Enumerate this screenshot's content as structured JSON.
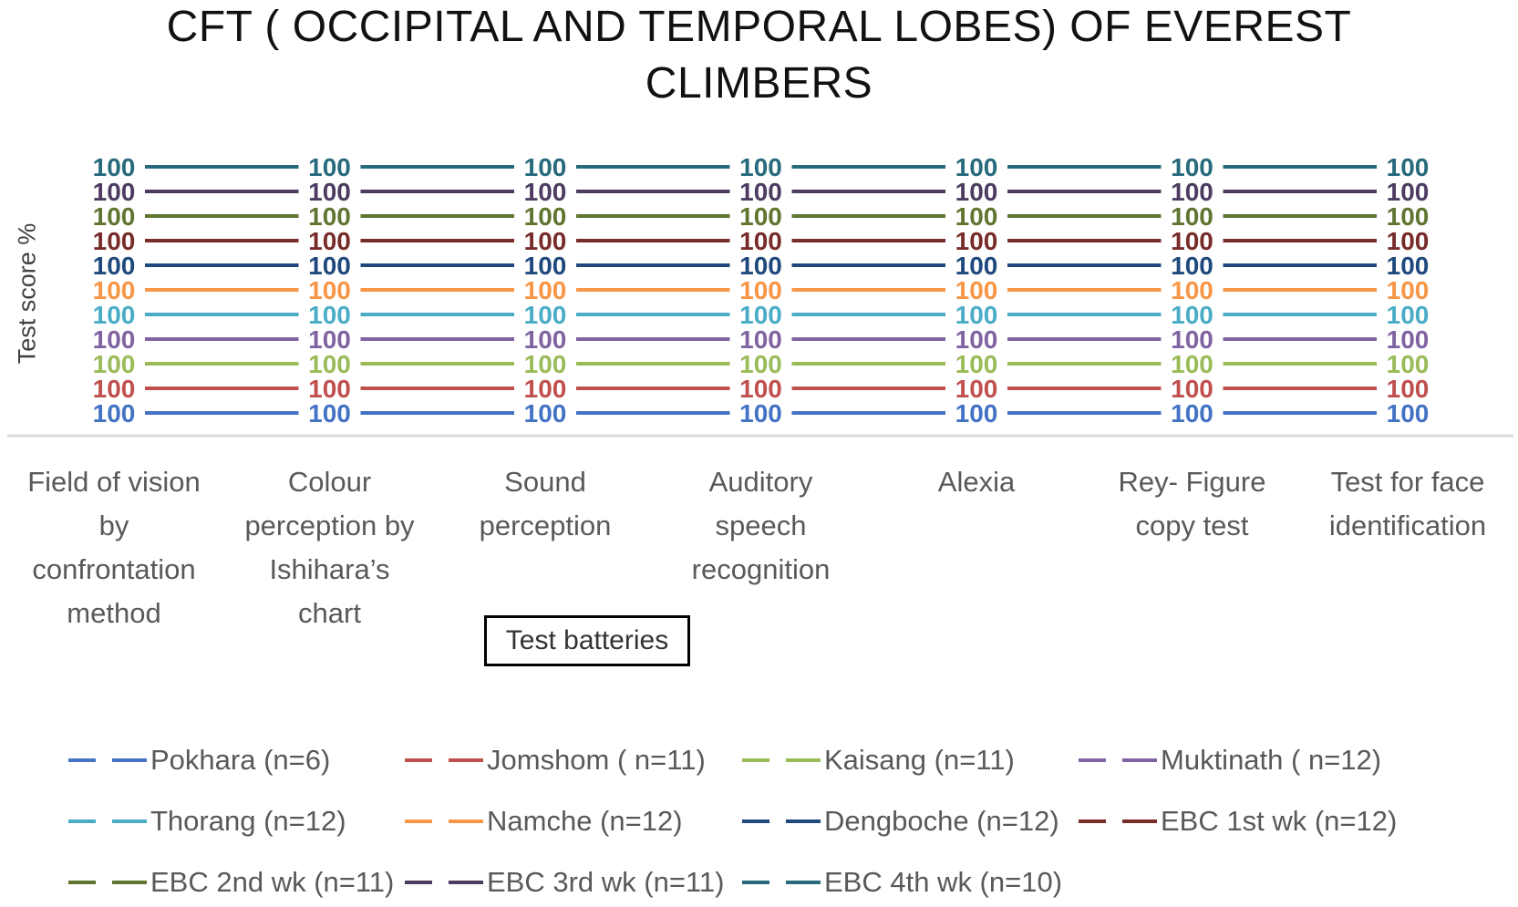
{
  "title_line1": "CFT ( OCCIPITAL AND TEMPORAL LOBES) OF EVEREST",
  "title_line2": "CLIMBERS",
  "ylabel": "Test score %",
  "xaxis_title": "Test batteries",
  "chart_data": {
    "type": "line",
    "title": "CFT ( OCCIPITAL AND TEMPORAL LOBES) OF EVEREST CLIMBERS",
    "xlabel": "Test batteries",
    "ylabel": "Test score %",
    "categories": [
      [
        "Field of vision",
        "by",
        "confrontation",
        "method"
      ],
      [
        "Colour",
        "perception by",
        "Ishihara’s",
        "chart"
      ],
      [
        "Sound",
        "perception"
      ],
      [
        "Auditory",
        "speech",
        "recognition"
      ],
      [
        "Alexia"
      ],
      [
        "Rey- Figure",
        "copy test"
      ],
      [
        "Test for face",
        "identification"
      ]
    ],
    "series": [
      {
        "name": "Pokhara (n=6)",
        "color": "#4472C4",
        "values": [
          100,
          100,
          100,
          100,
          100,
          100,
          100
        ]
      },
      {
        "name": "Jomshom ( n=11)",
        "color": "#C0504D",
        "values": [
          100,
          100,
          100,
          100,
          100,
          100,
          100
        ]
      },
      {
        "name": "Kaisang (n=11)",
        "color": "#9BBB59",
        "values": [
          100,
          100,
          100,
          100,
          100,
          100,
          100
        ]
      },
      {
        "name": "Muktinath ( n=12)",
        "color": "#8064A2",
        "values": [
          100,
          100,
          100,
          100,
          100,
          100,
          100
        ]
      },
      {
        "name": "Thorang (n=12)",
        "color": "#4BACC6",
        "values": [
          100,
          100,
          100,
          100,
          100,
          100,
          100
        ]
      },
      {
        "name": "Namche (n=12)",
        "color": "#F79646",
        "values": [
          100,
          100,
          100,
          100,
          100,
          100,
          100
        ]
      },
      {
        "name": "Dengboche (n=12)",
        "color": "#1F497D",
        "values": [
          100,
          100,
          100,
          100,
          100,
          100,
          100
        ]
      },
      {
        "name": "EBC 1st wk (n=12)",
        "color": "#772C2A",
        "values": [
          100,
          100,
          100,
          100,
          100,
          100,
          100
        ]
      },
      {
        "name": "EBC 2nd wk (n=11)",
        "color": "#5F7530",
        "values": [
          100,
          100,
          100,
          100,
          100,
          100,
          100
        ]
      },
      {
        "name": "EBC 3rd wk (n=11)",
        "color": "#4D3B62",
        "values": [
          100,
          100,
          100,
          100,
          100,
          100,
          100
        ]
      },
      {
        "name": "EBC 4th wk (n=10)",
        "color": "#276A7C",
        "values": [
          100,
          100,
          100,
          100,
          100,
          100,
          100
        ]
      }
    ],
    "data_labels": true,
    "legend_position": "bottom",
    "grid": false
  }
}
